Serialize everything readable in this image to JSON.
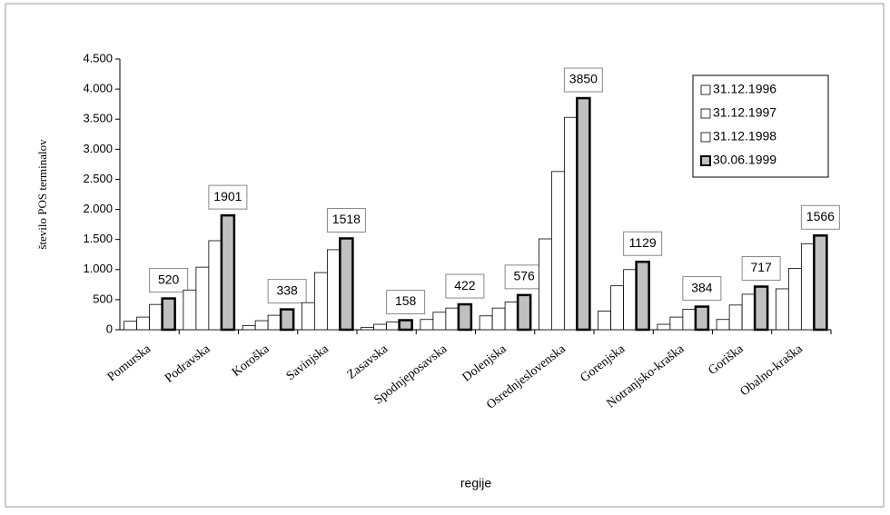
{
  "chart_data": {
    "type": "bar",
    "x_label": "regije",
    "y_label": "število POS terminalov",
    "categories": [
      "Pomurska",
      "Podravska",
      "Koroška",
      "Savinjska",
      "Zasavska",
      "Spodnjeposavska",
      "Dolenjska",
      "Osrednjeslovenska",
      "Gorenjska",
      "Notranjsko-kraška",
      "Goriška",
      "Obalno-kraška"
    ],
    "series": [
      {
        "name": "31.12.1996",
        "color": "#ffffff",
        "values": [
          140,
          660,
          70,
          450,
          40,
          170,
          230,
          1510,
          310,
          90,
          170,
          680
        ]
      },
      {
        "name": "31.12.1997",
        "color": "#ffffff",
        "values": [
          210,
          1040,
          150,
          950,
          90,
          290,
          360,
          2630,
          730,
          210,
          410,
          1020
        ]
      },
      {
        "name": "31.12.1998",
        "color": "#ffffff",
        "values": [
          420,
          1480,
          240,
          1330,
          130,
          360,
          460,
          3530,
          1000,
          340,
          590,
          1430
        ]
      },
      {
        "name": "30.06.1999",
        "color": "#c0c0c0",
        "values": [
          520,
          1901,
          338,
          1518,
          158,
          422,
          576,
          3850,
          1129,
          384,
          717,
          1566
        ]
      }
    ],
    "ylim": [
      0,
      4500
    ],
    "yticks": [
      0,
      500,
      {
        "value": 1000,
        "label": "1.000"
      },
      {
        "value": 1500,
        "label": "1.500"
      },
      {
        "value": 2000,
        "label": "2.000"
      },
      {
        "value": 2500,
        "label": "2.500"
      },
      {
        "value": 3000,
        "label": "3.000"
      },
      {
        "value": 3500,
        "label": "3.500"
      },
      {
        "value": 4000,
        "label": "4.000"
      },
      {
        "value": 4500,
        "label": "4.500"
      }
    ],
    "legend": "top-right"
  }
}
